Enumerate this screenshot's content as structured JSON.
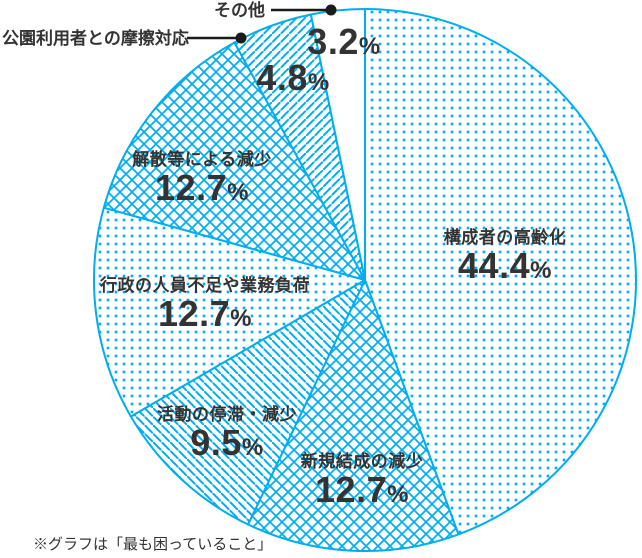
{
  "chart_data": {
    "type": "pie",
    "title": "",
    "footnote": "※グラフは「最も困っていること」",
    "percent_sign": "%",
    "direction": "clockwise",
    "start_angle_deg": 0,
    "legend_position": "none",
    "colors": {
      "accent": "#00AEEF",
      "text": "#333333",
      "callout": "#1b1b1b",
      "background": "#ffffff"
    },
    "slices": [
      {
        "key": "aging-of-members",
        "label": "構成者の高齢化",
        "value": 44.4,
        "pct": "44.4",
        "pattern": "dots"
      },
      {
        "key": "decline-in-new-formation",
        "label": "新規結成の減少",
        "value": 12.7,
        "pct": "12.7",
        "pattern": "crosshatch"
      },
      {
        "key": "stagnation-decline-of-activities",
        "label": "活動の停滞・減少",
        "value": 9.5,
        "pct": "9.5",
        "pattern": "diagonal-down"
      },
      {
        "key": "gov-staff-shortage-workload",
        "label": "行政の人員不足や業務負荷",
        "value": 12.7,
        "pct": "12.7",
        "pattern": "dots"
      },
      {
        "key": "decline-due-to-dissolution",
        "label": "解散等による減少",
        "value": 12.7,
        "pct": "12.7",
        "pattern": "crosshatch"
      },
      {
        "key": "friction-with-park-users",
        "label": "公園利用者との摩擦対応",
        "value": 4.8,
        "pct": "4.8",
        "pattern": "diagonal-up"
      },
      {
        "key": "other",
        "label": "その他",
        "value": 3.2,
        "pct": "3.2",
        "pattern": "plain"
      }
    ]
  }
}
